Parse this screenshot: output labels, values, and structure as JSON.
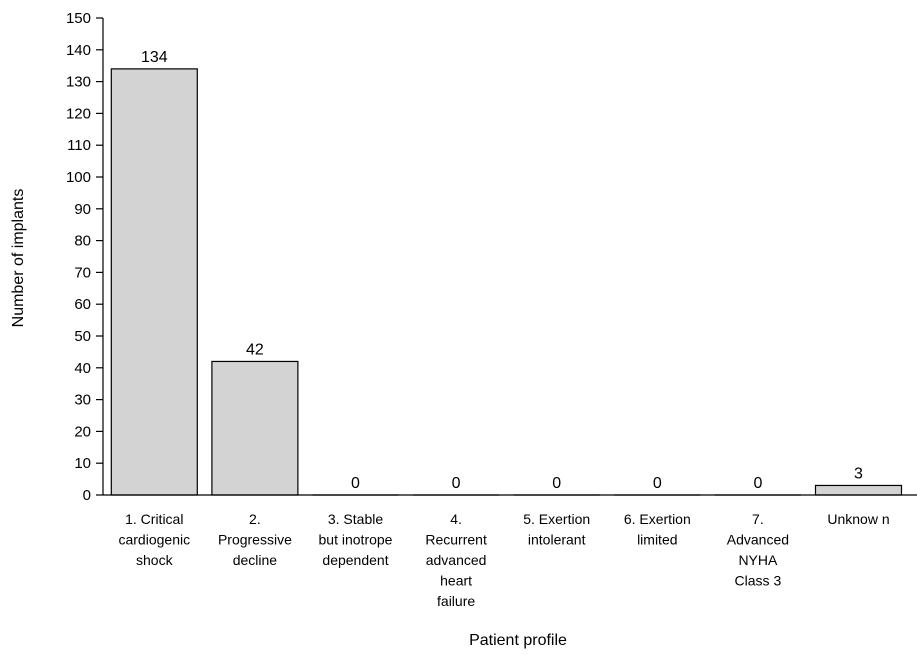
{
  "chart_data": {
    "type": "bar",
    "categories": [
      "1. Critical cardiogenic shock",
      "2. Progressive decline",
      "3. Stable but inotrope dependent",
      "4. Recurrent advanced heart failure",
      "5. Exertion intolerant",
      "6. Exertion limited",
      "7. Advanced NYHA Class 3",
      "Unknow n"
    ],
    "category_label_lines": [
      [
        "1. Critical",
        "cardiogenic",
        "shock"
      ],
      [
        "2.",
        "Progressive",
        "decline"
      ],
      [
        "3. Stable",
        "but inotrope",
        "dependent"
      ],
      [
        "4.",
        "Recurrent",
        "advanced",
        "heart",
        "failure"
      ],
      [
        "5. Exertion",
        "intolerant"
      ],
      [
        "6. Exertion",
        "limited"
      ],
      [
        "7.",
        "Advanced",
        "NYHA",
        "Class 3"
      ],
      [
        "Unknow n"
      ]
    ],
    "values": [
      134,
      42,
      0,
      0,
      0,
      0,
      0,
      3
    ],
    "xlabel": "Patient profile",
    "ylabel": "Number of implants",
    "ylim": [
      0,
      150
    ],
    "ytick_step": 10,
    "grid": false,
    "bar_color": "#d3d3d3",
    "bar_edge_color": "#000000"
  }
}
